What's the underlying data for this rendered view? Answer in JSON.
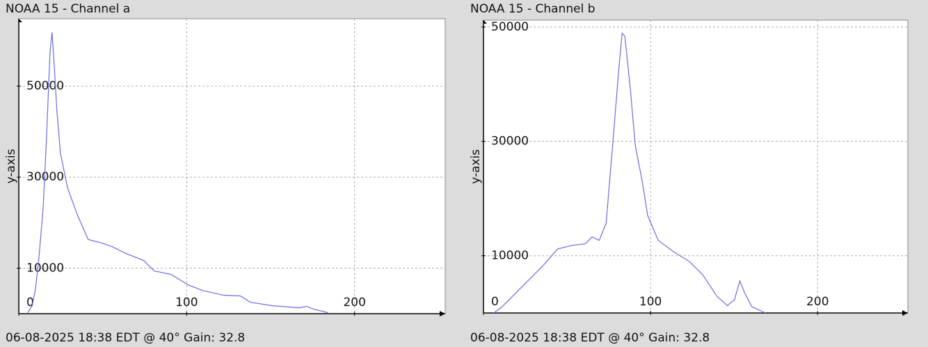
{
  "chart_data": [
    {
      "type": "line",
      "title": "NOAA 15 - Channel a",
      "y_label": "y-axis",
      "caption": "06-08-2025 18:38 EDT @ 40° Gain: 32.8",
      "color": "#6a6ae0",
      "grid": true,
      "xlim": [
        0,
        254
      ],
      "ylim": [
        0,
        64800
      ],
      "xticks": [
        0,
        100,
        200
      ],
      "yticks": [
        10000,
        30000,
        50000
      ],
      "x": [
        5.4,
        8,
        10,
        12,
        14.5,
        16.5,
        18.6,
        19.8,
        21,
        22.7,
        24.8,
        29,
        35,
        41.3,
        49.6,
        55.8,
        64,
        74.4,
        80.6,
        90.9,
        101,
        109.5,
        122,
        132,
        138,
        151,
        167,
        171.5,
        175.6,
        184
      ],
      "values": [
        230,
        1750,
        5570,
        12400,
        23100,
        38400,
        57500,
        61800,
        55200,
        44500,
        35300,
        27700,
        21600,
        16300,
        15500,
        14700,
        13200,
        11700,
        9400,
        8600,
        6300,
        5100,
        4050,
        3900,
        2500,
        1750,
        1300,
        1600,
        1000,
        230
      ]
    },
    {
      "type": "line",
      "title": "NOAA 15 - Channel b",
      "y_label": "y-axis",
      "caption": "06-08-2025 18:38 EDT @ 40° Gain: 32.8",
      "color": "#6a6ae0",
      "grid": true,
      "xlim": [
        0,
        254
      ],
      "ylim": [
        0,
        51200
      ],
      "xticks": [
        0,
        100,
        200
      ],
      "yticks": [
        10000,
        30000,
        50000
      ],
      "x": [
        6.2,
        11.2,
        19.5,
        27.8,
        36,
        44.4,
        52.7,
        61,
        65,
        69.3,
        73.4,
        77.6,
        81,
        83,
        84.6,
        88,
        90.9,
        95,
        98.3,
        104.6,
        112.9,
        123.2,
        131.5,
        139.8,
        146,
        150.2,
        153.5,
        156.4,
        160.6,
        168.9
      ],
      "values": [
        0,
        1100,
        3540,
        5980,
        8400,
        11200,
        11800,
        12100,
        13300,
        12700,
        15700,
        30400,
        42600,
        48900,
        48400,
        38900,
        29200,
        23100,
        17000,
        12700,
        10900,
        9000,
        6600,
        2900,
        1300,
        2300,
        5600,
        3500,
        1100,
        0
      ]
    }
  ]
}
